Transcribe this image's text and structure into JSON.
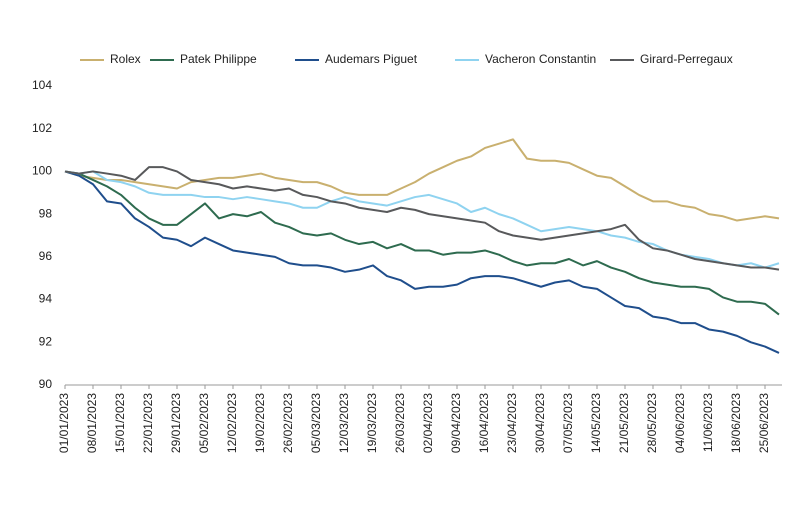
{
  "chart_data": {
    "type": "line",
    "categories": [
      "01/01/2023",
      null,
      "08/01/2023",
      null,
      "15/01/2023",
      null,
      "22/01/2023",
      null,
      "29/01/2023",
      null,
      "05/02/2023",
      null,
      "12/02/2023",
      null,
      "19/02/2023",
      null,
      "26/02/2023",
      null,
      "05/03/2023",
      null,
      "12/03/2023",
      null,
      "19/03/2023",
      null,
      "26/03/2023",
      null,
      "02/04/2023",
      null,
      "09/04/2023",
      null,
      "16/04/2023",
      null,
      "23/04/2023",
      null,
      "30/04/2023",
      null,
      "07/05/2023",
      null,
      "14/05/2023",
      null,
      "21/05/2023",
      null,
      "28/05/2023",
      null,
      "04/06/2023",
      null,
      "11/06/2023",
      null,
      "18/06/2023",
      null,
      "25/06/2023",
      null
    ],
    "series": [
      {
        "name": "Rolex",
        "color": "#c9b06f",
        "values": [
          100,
          99.8,
          99.7,
          99.6,
          99.6,
          99.5,
          99.4,
          99.3,
          99.2,
          99.5,
          99.6,
          99.7,
          99.7,
          99.8,
          99.9,
          99.7,
          99.6,
          99.5,
          99.5,
          99.3,
          99.0,
          98.9,
          98.9,
          98.9,
          99.2,
          99.5,
          99.9,
          100.2,
          100.5,
          100.7,
          101.1,
          101.3,
          101.5,
          100.6,
          100.5,
          100.5,
          100.4,
          100.1,
          99.8,
          99.7,
          99.3,
          98.9,
          98.6,
          98.6,
          98.4,
          98.3,
          98.0,
          97.9,
          97.7,
          97.8,
          97.9,
          97.8
        ]
      },
      {
        "name": "Patek Philippe",
        "color": "#2e6b4f",
        "values": [
          100,
          99.9,
          99.6,
          99.3,
          98.9,
          98.3,
          97.8,
          97.5,
          97.5,
          98.0,
          98.5,
          97.8,
          98.0,
          97.9,
          98.1,
          97.6,
          97.4,
          97.1,
          97.0,
          97.1,
          96.8,
          96.6,
          96.7,
          96.4,
          96.6,
          96.3,
          96.3,
          96.1,
          96.2,
          96.2,
          96.3,
          96.1,
          95.8,
          95.6,
          95.7,
          95.7,
          95.9,
          95.6,
          95.8,
          95.5,
          95.3,
          95.0,
          94.8,
          94.7,
          94.6,
          94.6,
          94.5,
          94.1,
          93.9,
          93.9,
          93.8,
          93.3
        ]
      },
      {
        "name": "Audemars Piguet",
        "color": "#1f4e8c",
        "values": [
          100,
          99.8,
          99.4,
          98.6,
          98.5,
          97.8,
          97.4,
          96.9,
          96.8,
          96.5,
          96.9,
          96.6,
          96.3,
          96.2,
          96.1,
          96.0,
          95.7,
          95.6,
          95.6,
          95.5,
          95.3,
          95.4,
          95.6,
          95.1,
          94.9,
          94.5,
          94.6,
          94.6,
          94.7,
          95.0,
          95.1,
          95.1,
          95.0,
          94.8,
          94.6,
          94.8,
          94.9,
          94.6,
          94.5,
          94.1,
          93.7,
          93.6,
          93.2,
          93.1,
          92.9,
          92.9,
          92.6,
          92.5,
          92.3,
          92.0,
          91.8,
          91.5
        ]
      },
      {
        "name": "Vacheron Constantin",
        "color": "#8fd3f0",
        "values": [
          100,
          99.9,
          100.0,
          99.6,
          99.5,
          99.3,
          99.0,
          98.9,
          98.9,
          98.9,
          98.8,
          98.8,
          98.7,
          98.8,
          98.7,
          98.6,
          98.5,
          98.3,
          98.3,
          98.6,
          98.8,
          98.6,
          98.5,
          98.4,
          98.6,
          98.8,
          98.9,
          98.7,
          98.5,
          98.1,
          98.3,
          98.0,
          97.8,
          97.5,
          97.2,
          97.3,
          97.4,
          97.3,
          97.2,
          97.0,
          96.9,
          96.7,
          96.6,
          96.3,
          96.1,
          96.0,
          95.9,
          95.7,
          95.6,
          95.7,
          95.5,
          95.7
        ]
      },
      {
        "name": "Girard-Perregaux",
        "color": "#58595b",
        "values": [
          100,
          99.9,
          100.0,
          99.9,
          99.8,
          99.6,
          100.2,
          100.2,
          100.0,
          99.6,
          99.5,
          99.4,
          99.2,
          99.3,
          99.2,
          99.1,
          99.2,
          98.9,
          98.8,
          98.6,
          98.5,
          98.3,
          98.2,
          98.1,
          98.3,
          98.2,
          98.0,
          97.9,
          97.8,
          97.7,
          97.6,
          97.2,
          97.0,
          96.9,
          96.8,
          96.9,
          97.0,
          97.1,
          97.2,
          97.3,
          97.5,
          96.8,
          96.4,
          96.3,
          96.1,
          95.9,
          95.8,
          95.7,
          95.6,
          95.5,
          95.5,
          95.4
        ]
      }
    ],
    "ylim": [
      90,
      104
    ],
    "yticks": [
      90,
      92,
      94,
      96,
      98,
      100,
      102,
      104
    ],
    "grid": false,
    "legend": "top"
  }
}
